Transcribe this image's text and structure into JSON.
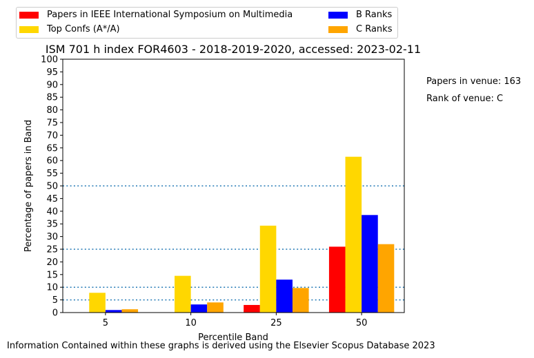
{
  "chart_data": {
    "type": "bar",
    "title": "ISM 701 h index FOR4603 - 2018-2019-2020, accessed: 2023-02-11",
    "xlabel": "Percentile Band",
    "ylabel": "Percentage of papers in Band",
    "categories": [
      "5",
      "10",
      "25",
      "50"
    ],
    "ylim": [
      0,
      100
    ],
    "yticks": [
      0,
      5,
      10,
      15,
      20,
      25,
      30,
      35,
      40,
      45,
      50,
      55,
      60,
      65,
      70,
      75,
      80,
      85,
      90,
      95,
      100
    ],
    "reference_lines": [
      5,
      10,
      25,
      50
    ],
    "series": [
      {
        "name": "Papers in IEEE International Symposium on Multimedia",
        "color": "#ff0000",
        "values": [
          0,
          0,
          3.0,
          26.0
        ]
      },
      {
        "name": "Top Confs (A*/A)",
        "color": "#ffd700",
        "values": [
          7.8,
          14.5,
          34.3,
          61.5
        ]
      },
      {
        "name": "B Ranks",
        "color": "#0000ff",
        "values": [
          1.0,
          3.2,
          13.0,
          38.5
        ]
      },
      {
        "name": "C Ranks",
        "color": "#ffa500",
        "values": [
          1.3,
          4.0,
          9.7,
          27.0
        ]
      }
    ],
    "legend_position": "top"
  },
  "annotations": {
    "papers_in_venue": "Papers in venue: 163",
    "rank_of_venue": "Rank of venue: C"
  },
  "footer": "Information Contained within these graphs is derived using the Elsevier Scopus Database 2023"
}
